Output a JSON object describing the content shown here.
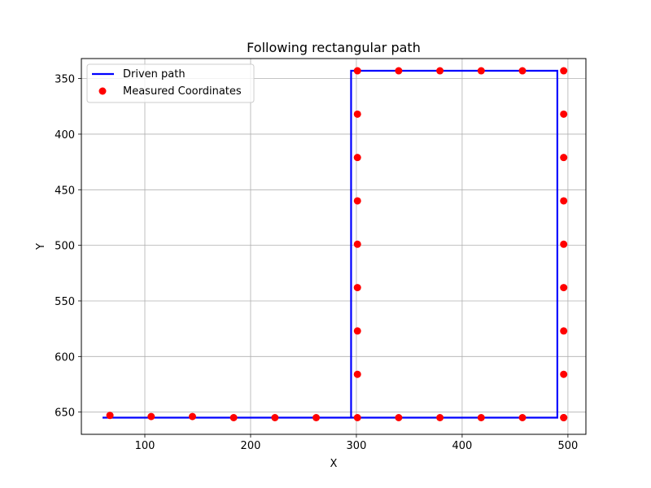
{
  "chart_data": {
    "type": "line",
    "title": "Following rectangular path",
    "xlabel": "X",
    "ylabel": "Y",
    "xlim": [
      40,
      517
    ],
    "ylim": [
      670,
      332
    ],
    "y_inverted": true,
    "grid": true,
    "legend_position": "top-left",
    "x_ticks": [
      100,
      200,
      300,
      400,
      500
    ],
    "y_ticks": [
      350,
      400,
      450,
      500,
      550,
      600,
      650
    ],
    "series": [
      {
        "name": "Driven path",
        "type": "line",
        "color": "#0000ff",
        "points": [
          [
            60,
            655
          ],
          [
            295,
            655
          ],
          [
            295,
            343
          ],
          [
            490,
            343
          ],
          [
            490,
            655
          ],
          [
            295,
            655
          ]
        ]
      },
      {
        "name": "Measured Coordinates",
        "type": "scatter",
        "color": "#ff0000",
        "points": [
          [
            67,
            653
          ],
          [
            106,
            654
          ],
          [
            145,
            654
          ],
          [
            184,
            655
          ],
          [
            223,
            655
          ],
          [
            262,
            655
          ],
          [
            301,
            655
          ],
          [
            340,
            655
          ],
          [
            379,
            655
          ],
          [
            418,
            655
          ],
          [
            457,
            655
          ],
          [
            496,
            655
          ],
          [
            301,
            616
          ],
          [
            301,
            577
          ],
          [
            301,
            538
          ],
          [
            301,
            499
          ],
          [
            301,
            460
          ],
          [
            301,
            421
          ],
          [
            301,
            382
          ],
          [
            301,
            343
          ],
          [
            340,
            343
          ],
          [
            379,
            343
          ],
          [
            418,
            343
          ],
          [
            457,
            343
          ],
          [
            496,
            343
          ],
          [
            496,
            382
          ],
          [
            496,
            421
          ],
          [
            496,
            460
          ],
          [
            496,
            499
          ],
          [
            496,
            538
          ],
          [
            496,
            577
          ],
          [
            496,
            616
          ],
          [
            496,
            655
          ]
        ]
      }
    ]
  }
}
